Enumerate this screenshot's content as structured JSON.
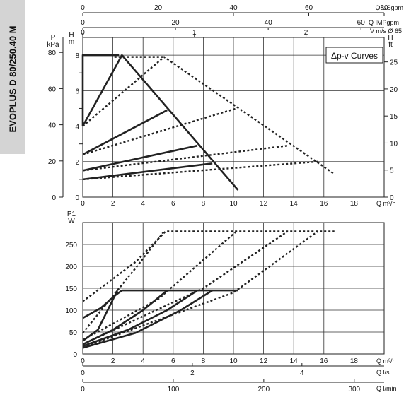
{
  "sidebar": {
    "title": "EVOPLUS D 80/250.40 M"
  },
  "chart_data": [
    {
      "type": "line",
      "title": "",
      "annotation": "Δp-v Curves",
      "xlabel": "Q m³/h",
      "xlim": [
        0,
        20
      ],
      "x_ticks": [
        0,
        2,
        4,
        6,
        8,
        10,
        12,
        14,
        16,
        18
      ],
      "ylim_left_m": [
        0,
        9
      ],
      "y_ticks_left_m": [
        0,
        2,
        4,
        6,
        8
      ],
      "left_label_m": "H\nm",
      "left_label_kpa": "P\nkPa",
      "y_ticks_left_kpa": [
        0,
        20,
        40,
        60,
        80
      ],
      "right_label_ft": "H\nft",
      "y_ticks_right_ft": [
        0,
        5,
        10,
        15,
        20,
        25
      ],
      "top_axes": [
        {
          "label": "Q USgpm",
          "max": 80,
          "ticks": [
            0,
            20,
            40,
            60,
            80
          ]
        },
        {
          "label": "Q IMPgpm",
          "max": 65,
          "ticks": [
            0,
            20,
            40,
            60
          ]
        },
        {
          "label": "V m/s Ø 65",
          "max": 2.7,
          "ticks": [
            0,
            1,
            2
          ]
        }
      ],
      "grid": true,
      "series": [
        {
          "style": "solid",
          "points": [
            [
              0,
              4
            ],
            [
              2.6,
              8
            ],
            [
              10.3,
              0.4
            ]
          ]
        },
        {
          "style": "solid",
          "points": [
            [
              0,
              4
            ],
            [
              0,
              8
            ],
            [
              2.4,
              8
            ]
          ]
        },
        {
          "style": "solid",
          "points": [
            [
              0,
              2.4
            ],
            [
              5.6,
              4.9
            ]
          ]
        },
        {
          "style": "solid",
          "points": [
            [
              0,
              1.5
            ],
            [
              7.6,
              2.9
            ]
          ]
        },
        {
          "style": "solid",
          "points": [
            [
              0,
              1
            ],
            [
              8.6,
              1.9
            ]
          ]
        },
        {
          "style": "dotted",
          "points": [
            [
              0,
              4
            ],
            [
              5.4,
              7.9
            ],
            [
              16.7,
              1.3
            ]
          ]
        },
        {
          "style": "dotted",
          "points": [
            [
              2.1,
              7.9
            ],
            [
              5.4,
              7.9
            ]
          ]
        },
        {
          "style": "dotted",
          "points": [
            [
              0,
              2.4
            ],
            [
              10.2,
              5
            ]
          ]
        },
        {
          "style": "dotted",
          "points": [
            [
              0,
              1.5
            ],
            [
              13.6,
              2.9
            ]
          ]
        },
        {
          "style": "dotted",
          "points": [
            [
              0,
              1
            ],
            [
              15.6,
              2
            ]
          ]
        }
      ]
    },
    {
      "type": "line",
      "title": "",
      "xlabel": "Q m³/h",
      "xlim": [
        0,
        20
      ],
      "x_ticks": [
        0,
        2,
        4,
        6,
        8,
        10,
        12,
        14,
        16,
        18
      ],
      "ylabel": "P1\nW",
      "ylim": [
        0,
        300
      ],
      "y_ticks": [
        0,
        50,
        100,
        150,
        200,
        250
      ],
      "bottom_axes": [
        {
          "label": "Q l/s",
          "max": 5.5,
          "ticks": [
            0,
            2,
            4
          ]
        },
        {
          "label": "Q l/min",
          "max": 333,
          "ticks": [
            0,
            100,
            200,
            300
          ]
        }
      ],
      "grid": true,
      "series": [
        {
          "style": "solid",
          "points": [
            [
              0,
              82
            ],
            [
              1.2,
              105
            ],
            [
              2.2,
              135
            ],
            [
              2.6,
              145
            ],
            [
              10.3,
              145
            ]
          ]
        },
        {
          "style": "solid",
          "points": [
            [
              0,
              30
            ],
            [
              1,
              55
            ],
            [
              2.3,
              145
            ]
          ]
        },
        {
          "style": "solid",
          "points": [
            [
              0,
              22
            ],
            [
              2,
              55
            ],
            [
              4,
              100
            ],
            [
              5.6,
              145
            ]
          ]
        },
        {
          "style": "solid",
          "points": [
            [
              0,
              18
            ],
            [
              3,
              55
            ],
            [
              5.6,
              100
            ],
            [
              7.6,
              145
            ]
          ]
        },
        {
          "style": "solid",
          "points": [
            [
              0,
              14
            ],
            [
              3.5,
              48
            ],
            [
              6.5,
              100
            ],
            [
              8.6,
              145
            ]
          ]
        },
        {
          "style": "dotted",
          "points": [
            [
              0,
              120
            ],
            [
              3.5,
              210
            ],
            [
              5.5,
              280
            ],
            [
              16.7,
              280
            ]
          ]
        },
        {
          "style": "dotted",
          "points": [
            [
              0,
              48
            ],
            [
              3.6,
              200
            ],
            [
              5.4,
              280
            ]
          ]
        },
        {
          "style": "dotted",
          "points": [
            [
              0,
              32
            ],
            [
              5,
              125
            ],
            [
              10.2,
              280
            ]
          ]
        },
        {
          "style": "dotted",
          "points": [
            [
              0,
              22
            ],
            [
              8,
              150
            ],
            [
              13.6,
              280
            ]
          ]
        },
        {
          "style": "dotted",
          "points": [
            [
              0,
              15
            ],
            [
              10,
              140
            ],
            [
              15.6,
              280
            ]
          ]
        }
      ]
    }
  ]
}
